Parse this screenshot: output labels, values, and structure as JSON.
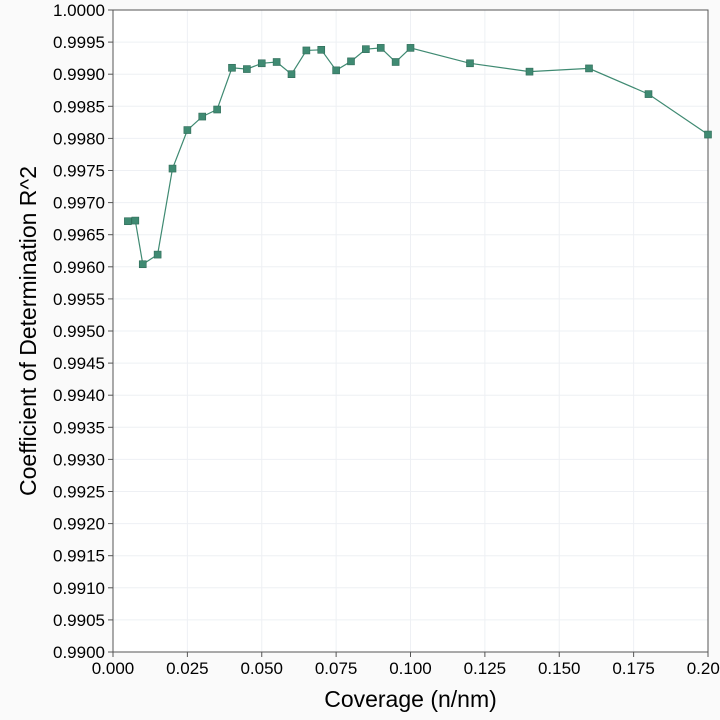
{
  "chart_data": {
    "type": "line",
    "xlabel": "Coverage (n/nm)",
    "ylabel": "Coefficient of Determination R^2",
    "xlim": [
      0.0,
      0.2
    ],
    "ylim": [
      0.99,
      1.0
    ],
    "grid": true,
    "x_ticks": [
      "0.000",
      "0.025",
      "0.050",
      "0.075",
      "0.100",
      "0.125",
      "0.150",
      "0.175",
      "0.200"
    ],
    "y_ticks": [
      "0.9900",
      "0.9905",
      "0.9910",
      "0.9915",
      "0.9920",
      "0.9925",
      "0.9930",
      "0.9935",
      "0.9940",
      "0.9945",
      "0.9950",
      "0.9955",
      "0.9960",
      "0.9965",
      "0.9970",
      "0.9975",
      "0.9980",
      "0.9985",
      "0.9990",
      "0.9995",
      "1.0000"
    ],
    "series": [
      {
        "color": "#3f8a72",
        "marker": "square",
        "points": [
          [
            0.005,
            0.99671
          ],
          [
            0.0075,
            0.99672
          ],
          [
            0.01,
            0.99604
          ],
          [
            0.015,
            0.99619
          ],
          [
            0.02,
            0.99753
          ],
          [
            0.025,
            0.99813
          ],
          [
            0.03,
            0.99834
          ],
          [
            0.035,
            0.99845
          ],
          [
            0.04,
            0.9991
          ],
          [
            0.045,
            0.99908
          ],
          [
            0.05,
            0.99917
          ],
          [
            0.055,
            0.99919
          ],
          [
            0.06,
            0.999
          ],
          [
            0.065,
            0.99937
          ],
          [
            0.07,
            0.99938
          ],
          [
            0.075,
            0.99906
          ],
          [
            0.08,
            0.9992
          ],
          [
            0.085,
            0.99939
          ],
          [
            0.09,
            0.99941
          ],
          [
            0.095,
            0.99919
          ],
          [
            0.1,
            0.99941
          ],
          [
            0.12,
            0.99917
          ],
          [
            0.14,
            0.99904
          ],
          [
            0.16,
            0.99909
          ],
          [
            0.18,
            0.99869
          ],
          [
            0.2,
            0.99806
          ]
        ]
      }
    ]
  }
}
